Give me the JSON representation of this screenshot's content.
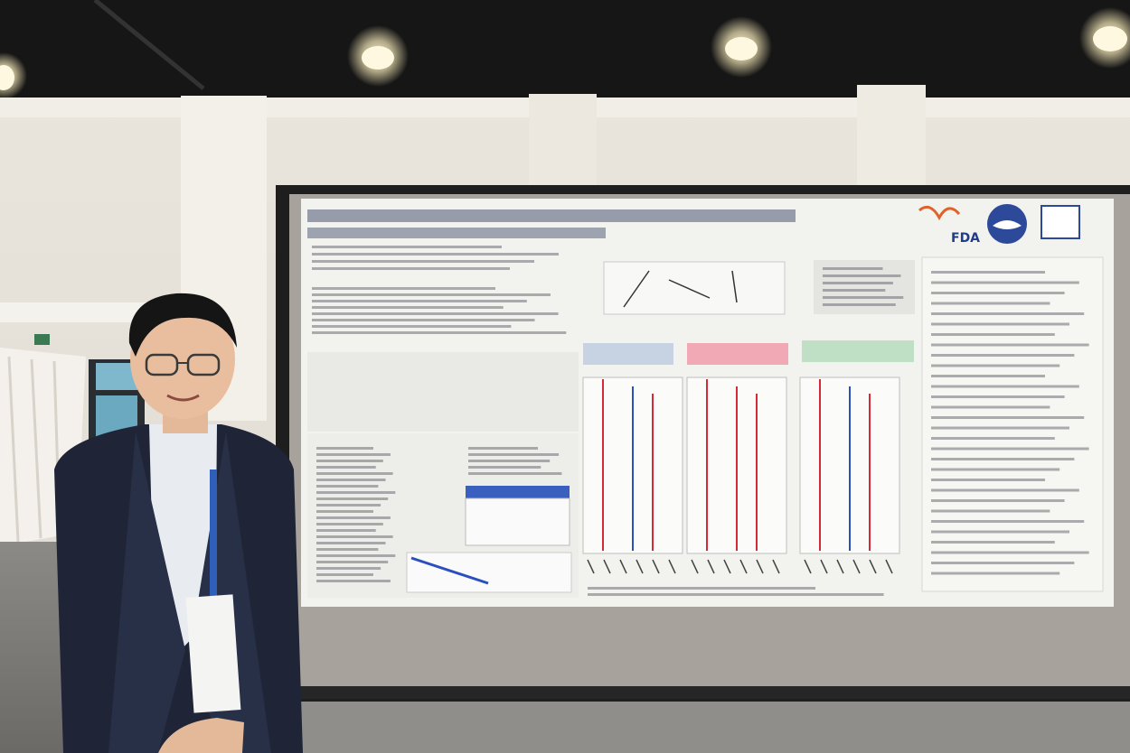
{
  "poster": {
    "logo_text": "FDA"
  }
}
